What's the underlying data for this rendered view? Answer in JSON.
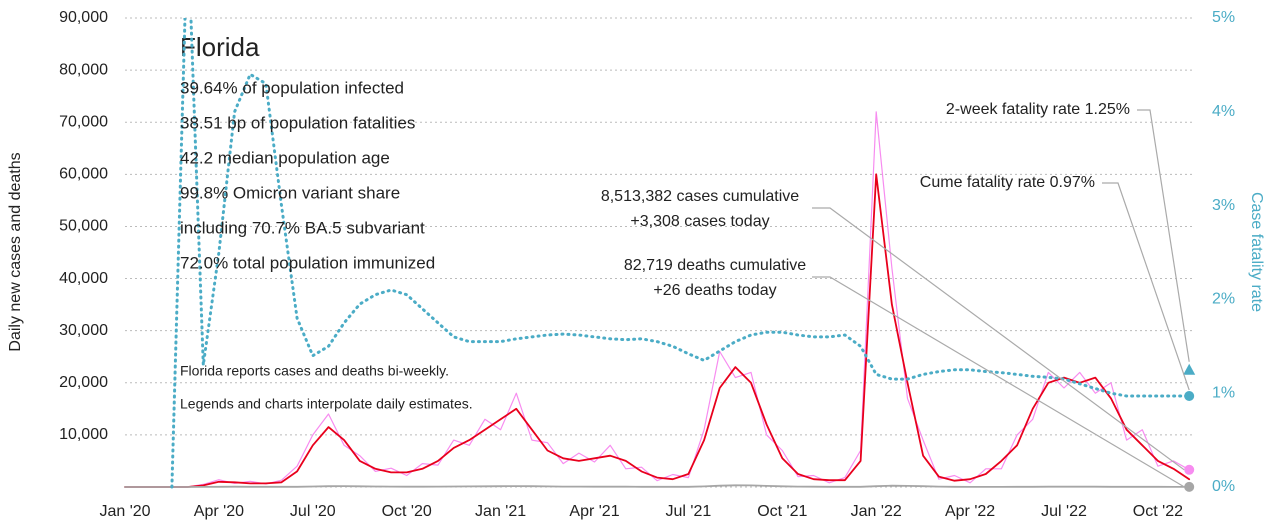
{
  "chart_data": {
    "type": "line",
    "title": "Florida",
    "stats": [
      "39.64% of population infected",
      "38.51 bp of population fatalities",
      "42.2 median population age",
      "99.8% Omicron variant share",
      "including 70.7% BA.5 subvariant",
      "72.0% total population immunized"
    ],
    "notes": [
      "Florida reports cases and deaths bi-weekly.",
      "Legends and charts interpolate daily estimates."
    ],
    "ylabel": "Daily new cases and deaths",
    "y2label": "Case fatality rate",
    "annotations": {
      "cases": [
        "8,513,382 cases cumulative",
        "+3,308 cases today"
      ],
      "deaths": [
        "82,719 deaths cumulative",
        "+26 deaths today"
      ],
      "cume_rate": "Cume fatality rate 0.97%",
      "two_week_rate": "2-week fatality rate 1.25%"
    },
    "two_week_rate_value": 1.25,
    "two_week_rate_color": "#4bacc6",
    "categories": [
      "Jan '20",
      null,
      null,
      null,
      null,
      null,
      "Apr '20",
      null,
      null,
      null,
      null,
      null,
      "Jul '20",
      null,
      null,
      null,
      null,
      null,
      "Oct '20",
      null,
      null,
      null,
      null,
      null,
      "Jan '21",
      null,
      null,
      null,
      null,
      null,
      "Apr '21",
      null,
      null,
      null,
      null,
      null,
      "Jul '21",
      null,
      null,
      null,
      null,
      null,
      "Oct '21",
      null,
      null,
      null,
      null,
      null,
      "Jan '22",
      null,
      null,
      null,
      null,
      null,
      "Apr '22",
      null,
      null,
      null,
      null,
      null,
      "Jul '22",
      null,
      null,
      null,
      null,
      null,
      "Oct '22",
      null,
      null
    ],
    "series": [
      {
        "color": "#f78cf0",
        "width": 1.2,
        "values": [
          0,
          0,
          0,
          0,
          0,
          500,
          1400,
          700,
          1100,
          600,
          1300,
          4000,
          10000,
          14000,
          8000,
          6000,
          3000,
          3600,
          2200,
          4500,
          4200,
          9000,
          8000,
          13000,
          11000,
          18000,
          9000,
          8500,
          4500,
          6500,
          4800,
          8000,
          3500,
          3800,
          1200,
          2400,
          1800,
          11000,
          26000,
          21000,
          22000,
          10000,
          7000,
          2000,
          2200,
          800,
          1800,
          7000,
          72000,
          42000,
          17000,
          9000,
          1500,
          2200,
          800,
          3500,
          3500,
          10000,
          13000,
          22000,
          19000,
          22000,
          18000,
          20000,
          9000,
          11000,
          4000,
          5000,
          3300
        ]
      },
      {
        "color": "#e8001c",
        "width": 1.8,
        "values": [
          0,
          0,
          0,
          0,
          0,
          300,
          1000,
          900,
          700,
          700,
          900,
          3000,
          8000,
          11500,
          9000,
          5000,
          3500,
          2800,
          2800,
          3500,
          5000,
          7500,
          9000,
          11000,
          13000,
          15000,
          11000,
          7000,
          5500,
          5000,
          5500,
          6000,
          5000,
          3000,
          1800,
          1500,
          2500,
          9000,
          19000,
          23000,
          20000,
          12000,
          5500,
          2500,
          1500,
          1300,
          1300,
          5000,
          60000,
          35000,
          20000,
          6000,
          2000,
          1200,
          1500,
          2500,
          5000,
          8000,
          15000,
          20000,
          21000,
          20000,
          21000,
          17000,
          11000,
          8000,
          5000,
          3500,
          1500
        ]
      },
      {
        "color": "#a6a6a6",
        "width": 1.8,
        "values": [
          0,
          0,
          0,
          0,
          0,
          10,
          40,
          50,
          40,
          35,
          30,
          40,
          90,
          150,
          170,
          140,
          100,
          80,
          60,
          60,
          70,
          90,
          110,
          130,
          160,
          180,
          150,
          110,
          80,
          70,
          60,
          60,
          55,
          45,
          35,
          30,
          40,
          120,
          250,
          330,
          300,
          220,
          140,
          80,
          50,
          40,
          35,
          40,
          150,
          250,
          220,
          150,
          80,
          40,
          25,
          20,
          20,
          30,
          40,
          50,
          55,
          55,
          50,
          45,
          40,
          35,
          30,
          25,
          20
        ]
      },
      {
        "color": "#4bacc6",
        "axis": "y2",
        "dotted": true,
        "width": 3,
        "values": [
          null,
          null,
          null,
          0,
          6,
          1.3,
          2.5,
          4.0,
          4.4,
          4.3,
          3.0,
          1.8,
          1.4,
          1.5,
          1.75,
          1.95,
          2.05,
          2.1,
          2.05,
          1.9,
          1.75,
          1.6,
          1.55,
          1.55,
          1.55,
          1.58,
          1.6,
          1.62,
          1.63,
          1.62,
          1.6,
          1.58,
          1.57,
          1.58,
          1.55,
          1.5,
          1.42,
          1.35,
          1.45,
          1.55,
          1.62,
          1.65,
          1.65,
          1.62,
          1.6,
          1.6,
          1.62,
          1.5,
          1.2,
          1.15,
          1.15,
          1.2,
          1.23,
          1.25,
          1.25,
          1.23,
          1.22,
          1.2,
          1.18,
          1.17,
          1.15,
          1.1,
          1.05,
          1.0,
          0.97,
          0.97,
          0.97,
          0.97,
          0.97
        ]
      }
    ],
    "ylim": [
      0,
      90000
    ],
    "yticks": [
      {
        "value": 10000,
        "label": "10,000"
      },
      {
        "value": 20000,
        "label": "20,000"
      },
      {
        "value": 30000,
        "label": "30,000"
      },
      {
        "value": 40000,
        "label": "40,000"
      },
      {
        "value": 50000,
        "label": "50,000"
      },
      {
        "value": 60000,
        "label": "60,000"
      },
      {
        "value": 70000,
        "label": "70,000"
      },
      {
        "value": 80000,
        "label": "80,000"
      },
      {
        "value": 90000,
        "label": "90,000"
      }
    ],
    "y2lim": [
      0,
      5
    ],
    "y2ticks": [
      {
        "value": 0,
        "label": "0%"
      },
      {
        "value": 1,
        "label": "1%"
      },
      {
        "value": 2,
        "label": "2%"
      },
      {
        "value": 3,
        "label": "3%"
      },
      {
        "value": 4,
        "label": "4%"
      },
      {
        "value": 5,
        "label": "5%"
      }
    ],
    "grid": true
  }
}
